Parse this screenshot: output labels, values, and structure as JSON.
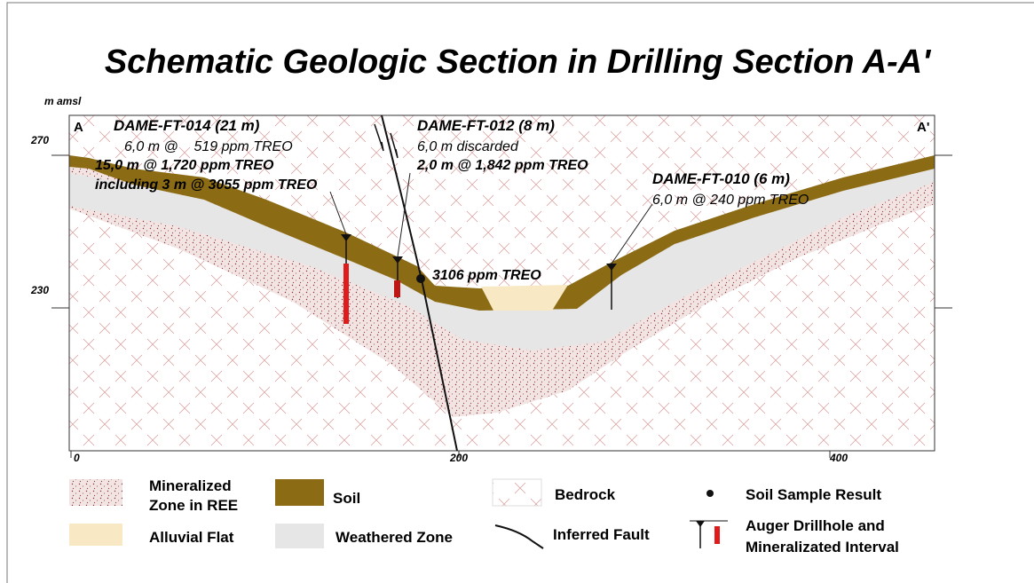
{
  "header": {
    "title": "Schematic Geologic Section in Drilling Section A-A'"
  },
  "section": {
    "y_axis_label": "m amsl",
    "left_end": "A",
    "right_end": "A'",
    "y_labels": [
      "270",
      "230"
    ],
    "x_labels": [
      "0",
      "200",
      "400"
    ],
    "drillholes": [
      {
        "name": "DAME-FT-014 (21 m)",
        "lines": [
          "6,0 m @    519 ppm TREO",
          "15,0 m @ 1,720 ppm TREO",
          "including 3 m @ 3055 ppm TREO"
        ]
      },
      {
        "name": "DAME-FT-012 (8 m)",
        "lines": [
          "6,0 m discarded",
          "2,0 m @ 1,842 ppm TREO"
        ]
      },
      {
        "name": "DAME-FT-010 (6 m)",
        "lines": [
          "6,0 m @ 240 ppm TREO"
        ]
      }
    ],
    "soil_sample": "3106 ppm TREO"
  },
  "legend": {
    "mineralized": [
      "Mineralized",
      "Zone in REE"
    ],
    "alluvial": "Alluvial Flat",
    "soil": "Soil",
    "weathered": "Weathered Zone",
    "bedrock": "Bedrock",
    "fault": "Inferred Fault",
    "sample": "Soil Sample Result",
    "drillhole": [
      "Auger Drillhole and",
      "Mineralizated Interval"
    ]
  }
}
